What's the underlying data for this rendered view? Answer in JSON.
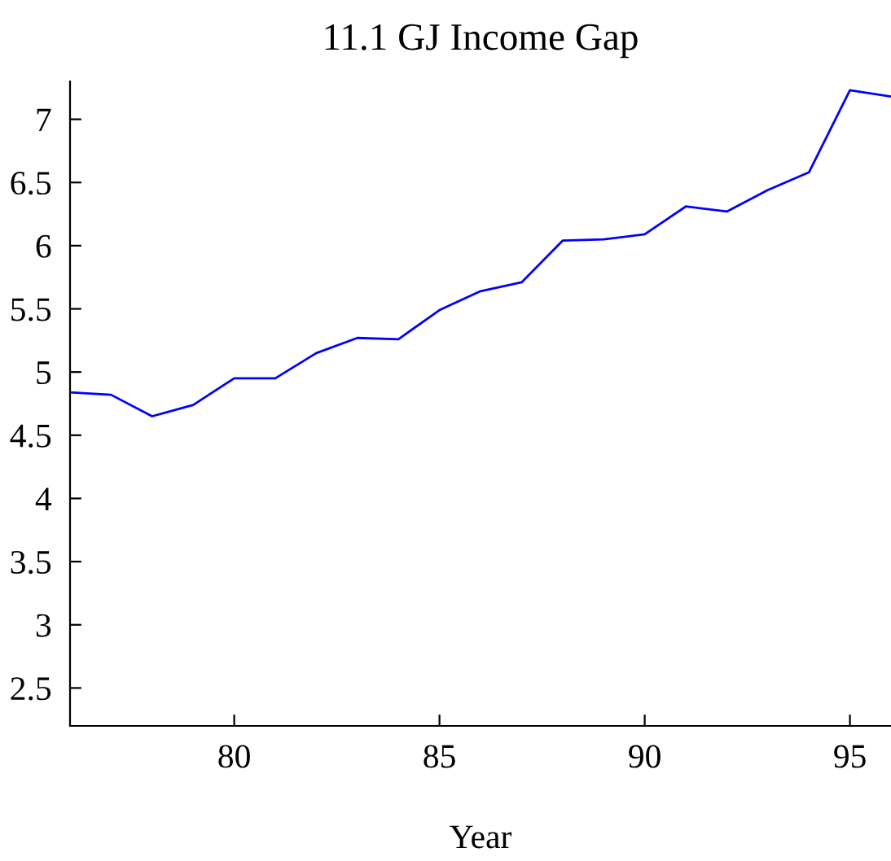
{
  "chart_data": {
    "type": "line",
    "title": "11.1 GJ Income Gap",
    "xlabel": "Year",
    "x": [
      76,
      77,
      78,
      79,
      80,
      81,
      82,
      83,
      84,
      85,
      86,
      87,
      88,
      89,
      90,
      91,
      92,
      93,
      94,
      95,
      96
    ],
    "series": [
      {
        "color": "#0000ff",
        "values": [
          4.84,
          4.82,
          4.65,
          4.74,
          4.95,
          4.95,
          5.15,
          5.27,
          5.26,
          5.49,
          5.64,
          5.71,
          6.04,
          6.05,
          6.09,
          6.31,
          6.27,
          6.44,
          6.58,
          7.23,
          7.18
        ]
      }
    ],
    "xlim": [
      76,
      96
    ],
    "xticks": [
      80,
      85,
      90,
      95
    ],
    "ylim": [
      2.2,
      7.3
    ],
    "yticks": [
      2.5,
      3,
      3.5,
      4,
      4.5,
      5,
      5.5,
      6,
      6.5,
      7
    ],
    "grid": false,
    "legend": false
  }
}
